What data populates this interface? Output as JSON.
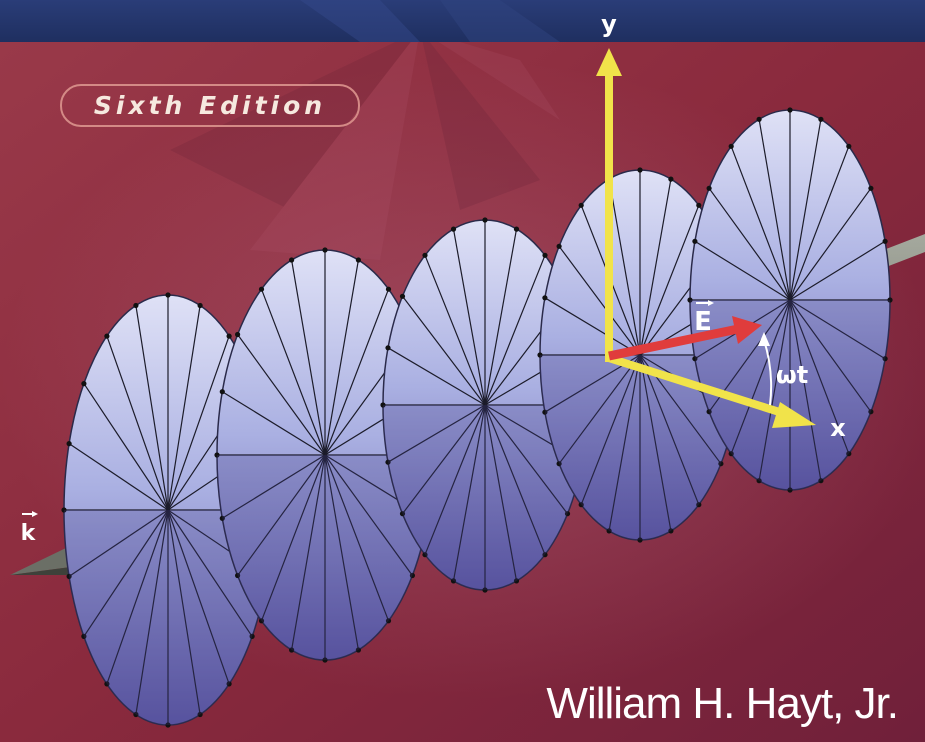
{
  "cover": {
    "edition": "Sixth Edition",
    "author": "William H. Hayt, Jr.",
    "labels": {
      "y_axis": "y",
      "x_axis": "x",
      "e_vector": "E",
      "omega_t": "ωt",
      "k_vector": "k"
    },
    "colors": {
      "background": "#8e2c3f",
      "top_band": "#23366d",
      "axis": "#f1e34a",
      "e_vector": "#e03c3c",
      "surface": "#a8aee4",
      "propagation_axis": "#7e8278"
    }
  }
}
